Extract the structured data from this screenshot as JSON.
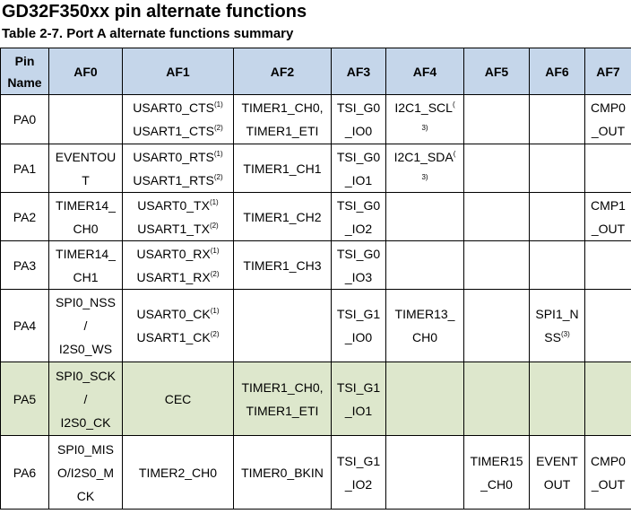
{
  "document": {
    "title": "GD32F350xx pin alternate functions",
    "table_caption": "Table 2-7. Port A alternate functions summary"
  },
  "table": {
    "headers": [
      "Pin\nName",
      "AF0",
      "AF1",
      "AF2",
      "AF3",
      "AF4",
      "AF5",
      "AF6",
      "AF7"
    ],
    "highlighted_row_color": "#dde7cc",
    "header_color": "#c5d6ea",
    "rows": [
      {
        "pin": "PA0",
        "cells": [
          [],
          [
            [
              "USART0_CTS",
              "(1)"
            ],
            [
              "USART1_CTS",
              "(2)"
            ]
          ],
          [
            [
              "TIMER1_CH0,"
            ],
            [
              "TIMER1_ETI"
            ]
          ],
          [
            [
              "TSI_G0"
            ],
            [
              "_IO0"
            ]
          ],
          [
            [
              "I2C1_SCL",
              "("
            ],
            [
              "",
              "3)"
            ]
          ],
          [],
          [],
          [
            [
              "CMP0"
            ],
            [
              "_OUT"
            ]
          ]
        ]
      },
      {
        "pin": "PA1",
        "cells": [
          [
            [
              "EVENTOU"
            ],
            [
              "T"
            ]
          ],
          [
            [
              "USART0_RTS",
              "(1)"
            ],
            [
              "USART1_RTS",
              "(2)"
            ]
          ],
          [
            [
              "TIMER1_CH1"
            ]
          ],
          [
            [
              "TSI_G0"
            ],
            [
              "_IO1"
            ]
          ],
          [
            [
              "I2C1_SDA",
              "("
            ],
            [
              "",
              "3)"
            ]
          ],
          [],
          [],
          []
        ]
      },
      {
        "pin": "PA2",
        "cells": [
          [
            [
              "TIMER14_"
            ],
            [
              "CH0"
            ]
          ],
          [
            [
              "USART0_TX",
              "(1)"
            ],
            [
              "USART1_TX",
              "(2)"
            ]
          ],
          [
            [
              "TIMER1_CH2"
            ]
          ],
          [
            [
              "TSI_G0"
            ],
            [
              "_IO2"
            ]
          ],
          [],
          [],
          [],
          [
            [
              "CMP1"
            ],
            [
              "_OUT"
            ]
          ]
        ]
      },
      {
        "pin": "PA3",
        "cells": [
          [
            [
              "TIMER14_"
            ],
            [
              "CH1"
            ]
          ],
          [
            [
              "USART0_RX",
              "(1)"
            ],
            [
              "USART1_RX",
              "(2)"
            ]
          ],
          [
            [
              "TIMER1_CH3"
            ]
          ],
          [
            [
              "TSI_G0"
            ],
            [
              "_IO3"
            ]
          ],
          [],
          [],
          [],
          []
        ]
      },
      {
        "pin": "PA4",
        "cells": [
          [
            [
              "SPI0_NSS"
            ],
            [
              "/"
            ],
            [
              "I2S0_WS"
            ]
          ],
          [
            [
              "USART0_CK",
              "(1)"
            ],
            [
              "USART1_CK",
              "(2)"
            ]
          ],
          [],
          [
            [
              "TSI_G1"
            ],
            [
              "_IO0"
            ]
          ],
          [
            [
              "TIMER13_"
            ],
            [
              "CH0"
            ]
          ],
          [],
          [
            [
              "SPI1_N"
            ],
            [
              "SS",
              "(3)"
            ]
          ],
          []
        ]
      },
      {
        "pin": "PA5",
        "highlight": true,
        "cells": [
          [
            [
              "SPI0_SCK"
            ],
            [
              "/"
            ],
            [
              "I2S0_CK"
            ]
          ],
          [
            [
              "CEC"
            ]
          ],
          [
            [
              "TIMER1_CH0,"
            ],
            [
              "TIMER1_ETI"
            ]
          ],
          [
            [
              "TSI_G1"
            ],
            [
              "_IO1"
            ]
          ],
          [],
          [],
          [],
          []
        ]
      },
      {
        "pin": "PA6",
        "cells": [
          [
            [
              "SPI0_MIS"
            ],
            [
              "O/I2S0_M"
            ],
            [
              "CK"
            ]
          ],
          [
            [
              "TIMER2_CH0"
            ]
          ],
          [
            [
              "TIMER0_BKIN"
            ]
          ],
          [
            [
              "TSI_G1"
            ],
            [
              "_IO2"
            ]
          ],
          [],
          [
            [
              "TIMER15"
            ],
            [
              "_CH0"
            ]
          ],
          [
            [
              "EVENT"
            ],
            [
              "OUT"
            ]
          ],
          [
            [
              "CMP0"
            ],
            [
              "_OUT"
            ]
          ]
        ]
      }
    ]
  }
}
